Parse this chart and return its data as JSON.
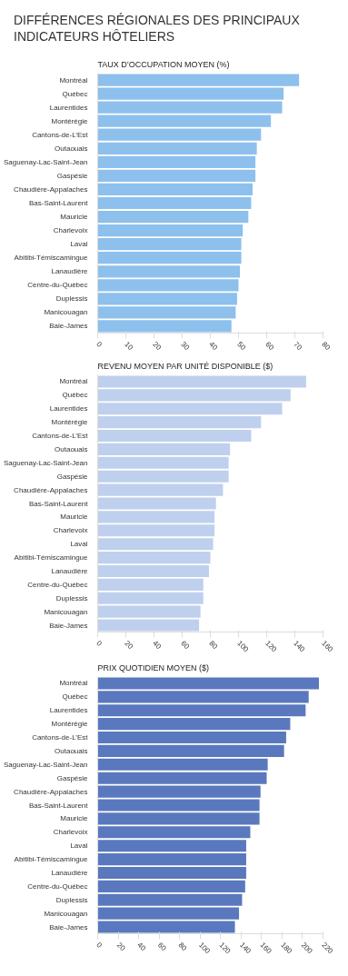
{
  "chart_data": [
    {
      "type": "other",
      "title": "DIFFÉRENCES RÉGIONALES DES PRINCIPAUX\nINDICATEURS HÔTELIERS"
    },
    {
      "type": "bar",
      "orientation": "horizontal",
      "title": "TAUX D’OCCUPATION MOYEN (%)",
      "grid": false,
      "color": "#8dc0ec",
      "categories": [
        "Montréal",
        "Québec",
        "Laurentides",
        "Montérégie",
        "Cantons-de-L’Est",
        "Outaouais",
        "Saguenay-Lac-Saint-Jean",
        "Gaspésie",
        "Chaudière-Appalaches",
        "Bas-Saint-Laurent",
        "Mauricie",
        "Charlevoix",
        "Laval",
        "Abitibi-Témiscamingue",
        "Lanaudière",
        "Centre-du-Québec",
        "Duplessis",
        "Manicouagan",
        "Baie-James"
      ],
      "values": [
        71.5,
        66,
        65.5,
        61.5,
        58,
        56.5,
        56,
        56,
        55,
        54.5,
        53.5,
        51.5,
        51,
        51,
        50.5,
        50,
        49.5,
        49,
        47.5
      ],
      "xlim": [
        0,
        80
      ],
      "xticks": [
        0,
        10,
        20,
        30,
        40,
        50,
        60,
        70,
        80
      ]
    },
    {
      "type": "bar",
      "orientation": "horizontal",
      "title": "REVENU MOYEN PAR UNITÉ DISPONIBLE ($)",
      "grid": false,
      "color": "#bfd0ee",
      "categories": [
        "Montréal",
        "Québec",
        "Laurentides",
        "Montérégie",
        "Cantons-de-L’Est",
        "Outaouais",
        "Saguenay-Lac-Saint-Jean",
        "Gaspésie",
        "Chaudière-Appalaches",
        "Bas-Saint-Laurent",
        "Mauricie",
        "Charlevoix",
        "Laval",
        "Abitibi-Témiscamingue",
        "Lanaudière",
        "Centre-du-Québec",
        "Duplessis",
        "Manicouagan",
        "Baie-James"
      ],
      "values": [
        148,
        137,
        131,
        116,
        109,
        94,
        93,
        93,
        89,
        84,
        83,
        83,
        82,
        80,
        79,
        75,
        75,
        73,
        72
      ],
      "xlim": [
        0,
        160
      ],
      "xticks": [
        0,
        20,
        40,
        60,
        80,
        100,
        120,
        140,
        160
      ]
    },
    {
      "type": "bar",
      "orientation": "horizontal",
      "title": "PRIX QUOTIDIEN MOYEN ($)",
      "grid": false,
      "color": "#5a78bd",
      "categories": [
        "Montréal",
        "Québec",
        "Laurentides",
        "Montérégie",
        "Cantons-de-L’Est",
        "Outaouais",
        "Saguenay-Lac-Saint-Jean",
        "Gaspésie",
        "Chaudière-Appalaches",
        "Bas-Saint-Laurent",
        "Mauricie",
        "Charlevoix",
        "Laval",
        "Abitibi-Témiscamingue",
        "Lanaudière",
        "Centre-du-Québec",
        "Duplessis",
        "Manicouagan",
        "Baie-James"
      ],
      "values": [
        216,
        206,
        203,
        188,
        184,
        182,
        166,
        165,
        159,
        158,
        158,
        149,
        145,
        145,
        145,
        144,
        141,
        138,
        134
      ],
      "xlim": [
        0,
        220
      ],
      "xticks": [
        0,
        20,
        40,
        60,
        80,
        100,
        120,
        140,
        160,
        180,
        200,
        220
      ]
    }
  ]
}
